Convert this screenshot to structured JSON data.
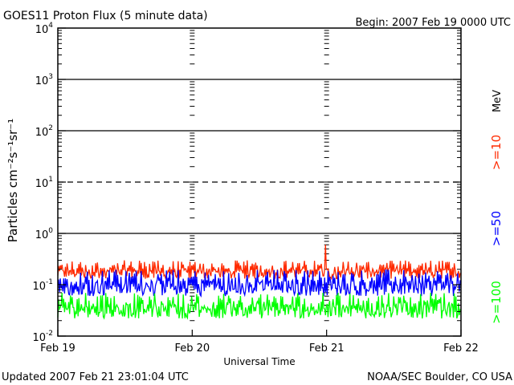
{
  "chart_data": {
    "type": "line",
    "title": "GOES11 Proton Flux (5 minute data)",
    "begin_label": "Begin: 2007 Feb 19 0000 UTC",
    "xlabel": "Universal Time",
    "ylabel": "Particles cm⁻²s⁻¹sr⁻¹",
    "units": "MeV",
    "x_ticks": [
      "Feb 19",
      "Feb 20",
      "Feb 21",
      "Feb 22"
    ],
    "x_range_days": [
      0,
      3
    ],
    "y_scale": "log",
    "ylim": [
      0.01,
      10000
    ],
    "y_ticks": [
      {
        "value": 0.01,
        "base": "10",
        "exp": "-2"
      },
      {
        "value": 0.1,
        "base": "10",
        "exp": "-1"
      },
      {
        "value": 1,
        "base": "10",
        "exp": "0"
      },
      {
        "value": 10,
        "base": "10",
        "exp": "1"
      },
      {
        "value": 100,
        "base": "10",
        "exp": "2"
      },
      {
        "value": 1000,
        "base": "10",
        "exp": "3"
      },
      {
        "value": 10000,
        "base": "10",
        "exp": "4"
      }
    ],
    "threshold_lines": [
      {
        "value": 10,
        "style": "dashed"
      },
      {
        "value": 1,
        "style": "solid"
      },
      {
        "value": 100,
        "style": "solid"
      },
      {
        "value": 1000,
        "style": "solid"
      }
    ],
    "series": [
      {
        "name": ">=10",
        "color": "#ff2a00",
        "typical_flux": [
          0.13,
          0.3
        ],
        "peak_flux": 0.6
      },
      {
        "name": ">=50",
        "color": "#0000ff",
        "typical_flux": [
          0.06,
          0.2
        ]
      },
      {
        "name": ">=100",
        "color": "#00ff00",
        "typical_flux": [
          0.022,
          0.07
        ]
      }
    ]
  },
  "footer": {
    "updated": "Updated 2007 Feb 21 23:01:04 UTC",
    "credit": "NOAA/SEC Boulder, CO USA"
  }
}
